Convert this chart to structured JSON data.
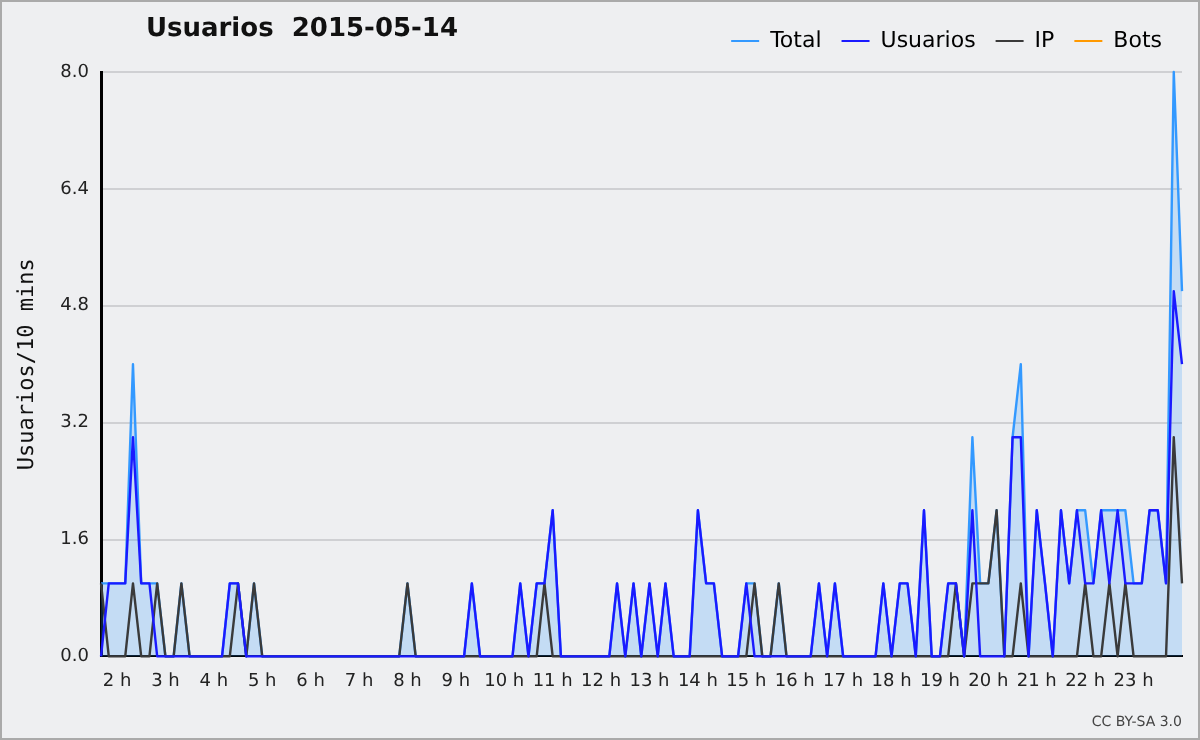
{
  "chart_data": {
    "type": "line",
    "title": "Usuarios  2015-05-14",
    "ylabel": "Usuarios/10 mins",
    "annotations": [
      "CC BY-SA 3.0"
    ],
    "x": [
      1.67,
      1.83,
      2,
      2.17,
      2.33,
      2.5,
      2.67,
      2.83,
      3,
      3.17,
      3.33,
      3.5,
      3.67,
      3.83,
      4,
      4.17,
      4.33,
      4.5,
      4.67,
      4.83,
      5,
      5.17,
      5.33,
      5.5,
      5.67,
      5.83,
      6,
      6.17,
      6.33,
      6.5,
      6.67,
      6.83,
      7,
      7.17,
      7.33,
      7.5,
      7.67,
      7.83,
      8,
      8.17,
      8.33,
      8.5,
      8.67,
      8.83,
      9,
      9.17,
      9.33,
      9.5,
      9.67,
      9.83,
      10,
      10.17,
      10.33,
      10.5,
      10.67,
      10.83,
      11,
      11.17,
      11.33,
      11.5,
      11.67,
      11.83,
      12,
      12.17,
      12.33,
      12.5,
      12.67,
      12.83,
      13,
      13.17,
      13.33,
      13.5,
      13.67,
      13.83,
      14,
      14.17,
      14.33,
      14.5,
      14.67,
      14.83,
      15,
      15.17,
      15.33,
      15.5,
      15.67,
      15.83,
      16,
      16.17,
      16.33,
      16.5,
      16.67,
      16.83,
      17,
      17.17,
      17.33,
      17.5,
      17.67,
      17.83,
      18,
      18.17,
      18.33,
      18.5,
      18.67,
      18.83,
      19,
      19.17,
      19.33,
      19.5,
      19.67,
      19.83,
      20,
      20.17,
      20.33,
      20.5,
      20.67,
      20.83,
      21,
      21.17,
      21.33,
      21.5,
      21.67,
      21.83,
      22,
      22.17,
      22.33,
      22.5,
      22.67,
      22.83,
      23,
      23.17,
      23.33,
      23.5,
      23.67,
      23.83,
      24
    ],
    "xlim": [
      1.67,
      24
    ],
    "xticks": [
      {
        "value": 2,
        "label": "2 h"
      },
      {
        "value": 3,
        "label": "3 h"
      },
      {
        "value": 4,
        "label": "4 h"
      },
      {
        "value": 5,
        "label": "5 h"
      },
      {
        "value": 6,
        "label": "6 h"
      },
      {
        "value": 7,
        "label": "7 h"
      },
      {
        "value": 8,
        "label": "8 h"
      },
      {
        "value": 9,
        "label": "9 h"
      },
      {
        "value": 10,
        "label": "10 h"
      },
      {
        "value": 11,
        "label": "11 h"
      },
      {
        "value": 12,
        "label": "12 h"
      },
      {
        "value": 13,
        "label": "13 h"
      },
      {
        "value": 14,
        "label": "14 h"
      },
      {
        "value": 15,
        "label": "15 h"
      },
      {
        "value": 16,
        "label": "16 h"
      },
      {
        "value": 17,
        "label": "17 h"
      },
      {
        "value": 18,
        "label": "18 h"
      },
      {
        "value": 19,
        "label": "19 h"
      },
      {
        "value": 20,
        "label": "20 h"
      },
      {
        "value": 21,
        "label": "21 h"
      },
      {
        "value": 22,
        "label": "22 h"
      },
      {
        "value": 23,
        "label": "23 h"
      }
    ],
    "ylim": [
      0,
      8
    ],
    "yticks": [
      {
        "value": 0,
        "label": "0.0"
      },
      {
        "value": 1.6,
        "label": "1.6"
      },
      {
        "value": 3.2,
        "label": "3.2"
      },
      {
        "value": 4.8,
        "label": "4.8"
      },
      {
        "value": 6.4,
        "label": "6.4"
      },
      {
        "value": 8,
        "label": "8.0"
      }
    ],
    "grid": "y",
    "legend": "top right",
    "marker": "none",
    "line_style": "solid",
    "series": [
      {
        "name": "Total",
        "type": "area",
        "color": "#3399ff",
        "values": [
          1,
          1,
          1,
          1,
          4,
          1,
          1,
          1,
          0,
          0,
          1,
          0,
          0,
          0,
          0,
          0,
          1,
          1,
          0,
          1,
          0,
          0,
          0,
          0,
          0,
          0,
          0,
          0,
          0,
          0,
          0,
          0,
          0,
          0,
          0,
          0,
          0,
          0,
          1,
          0,
          0,
          0,
          0,
          0,
          0,
          0,
          1,
          0,
          0,
          0,
          0,
          0,
          1,
          0,
          1,
          1,
          2,
          0,
          0,
          0,
          0,
          0,
          0,
          0,
          1,
          0,
          1,
          0,
          1,
          0,
          1,
          0,
          0,
          0,
          2,
          1,
          1,
          0,
          0,
          0,
          1,
          1,
          0,
          0,
          1,
          0,
          0,
          0,
          0,
          1,
          0,
          1,
          0,
          0,
          0,
          0,
          0,
          1,
          0,
          1,
          1,
          0,
          2,
          0,
          0,
          1,
          1,
          0,
          3,
          1,
          1,
          2,
          0,
          3,
          4,
          0,
          2,
          1,
          0,
          2,
          1,
          2,
          2,
          1,
          2,
          2,
          2,
          2,
          1,
          1,
          2,
          2,
          1,
          8,
          5
        ]
      },
      {
        "name": "Usuarios",
        "color": "#1a1aff",
        "values": [
          0,
          1,
          1,
          1,
          3,
          1,
          1,
          0,
          0,
          0,
          0,
          0,
          0,
          0,
          0,
          0,
          1,
          1,
          0,
          0,
          0,
          0,
          0,
          0,
          0,
          0,
          0,
          0,
          0,
          0,
          0,
          0,
          0,
          0,
          0,
          0,
          0,
          0,
          0,
          0,
          0,
          0,
          0,
          0,
          0,
          0,
          1,
          0,
          0,
          0,
          0,
          0,
          1,
          0,
          1,
          1,
          2,
          0,
          0,
          0,
          0,
          0,
          0,
          0,
          1,
          0,
          1,
          0,
          1,
          0,
          1,
          0,
          0,
          0,
          2,
          1,
          1,
          0,
          0,
          0,
          1,
          0,
          0,
          0,
          0,
          0,
          0,
          0,
          0,
          1,
          0,
          1,
          0,
          0,
          0,
          0,
          0,
          1,
          0,
          1,
          1,
          0,
          2,
          0,
          0,
          1,
          1,
          0,
          2,
          0,
          0,
          0,
          0,
          3,
          3,
          0,
          2,
          1,
          0,
          2,
          1,
          2,
          1,
          1,
          2,
          1,
          2,
          1,
          1,
          1,
          2,
          2,
          1,
          5,
          4
        ]
      },
      {
        "name": "IP",
        "color": "#3a3a3a",
        "values": [
          1,
          0,
          0,
          0,
          1,
          0,
          0,
          1,
          0,
          0,
          1,
          0,
          0,
          0,
          0,
          0,
          0,
          1,
          0,
          1,
          0,
          0,
          0,
          0,
          0,
          0,
          0,
          0,
          0,
          0,
          0,
          0,
          0,
          0,
          0,
          0,
          0,
          0,
          1,
          0,
          0,
          0,
          0,
          0,
          0,
          0,
          0,
          0,
          0,
          0,
          0,
          0,
          0,
          0,
          0,
          1,
          0,
          0,
          0,
          0,
          0,
          0,
          0,
          0,
          0,
          0,
          0,
          0,
          0,
          0,
          0,
          0,
          0,
          0,
          0,
          0,
          0,
          0,
          0,
          0,
          0,
          1,
          0,
          0,
          1,
          0,
          0,
          0,
          0,
          0,
          0,
          0,
          0,
          0,
          0,
          0,
          0,
          0,
          0,
          0,
          0,
          0,
          0,
          0,
          0,
          0,
          1,
          0,
          1,
          1,
          1,
          2,
          0,
          0,
          1,
          0,
          0,
          0,
          0,
          0,
          0,
          0,
          1,
          0,
          0,
          1,
          0,
          1,
          0,
          0,
          0,
          0,
          0,
          3,
          1
        ]
      },
      {
        "name": "Bots",
        "color": "#ff9900",
        "values": [
          null,
          null,
          null,
          null,
          null,
          null,
          null,
          null,
          null,
          null,
          null,
          null,
          null,
          null,
          null,
          null,
          null,
          null,
          null,
          null,
          null,
          null,
          null,
          null,
          null,
          null,
          null,
          null,
          null,
          null,
          null,
          null,
          null,
          null,
          null,
          null,
          null,
          null,
          null,
          null,
          null,
          null,
          null,
          null,
          null,
          null,
          null,
          null,
          null,
          null,
          null,
          null,
          null,
          null,
          null,
          null,
          null,
          null,
          null,
          null,
          null,
          null,
          null,
          null,
          null,
          null,
          null,
          null,
          null,
          null,
          null,
          null,
          null,
          null,
          null,
          null,
          null,
          null,
          null,
          null,
          null,
          null,
          null,
          null,
          null,
          null,
          null,
          null,
          null,
          null,
          null,
          null,
          null,
          null,
          null,
          null,
          null,
          null,
          null,
          null,
          null,
          null,
          null,
          null,
          null,
          null,
          null,
          null,
          null,
          null,
          null,
          null,
          null,
          null,
          null,
          null,
          null,
          null,
          null,
          null,
          null,
          null,
          null,
          null,
          null,
          null,
          null,
          null,
          null,
          null,
          null,
          null,
          null,
          null,
          null
        ]
      }
    ]
  }
}
